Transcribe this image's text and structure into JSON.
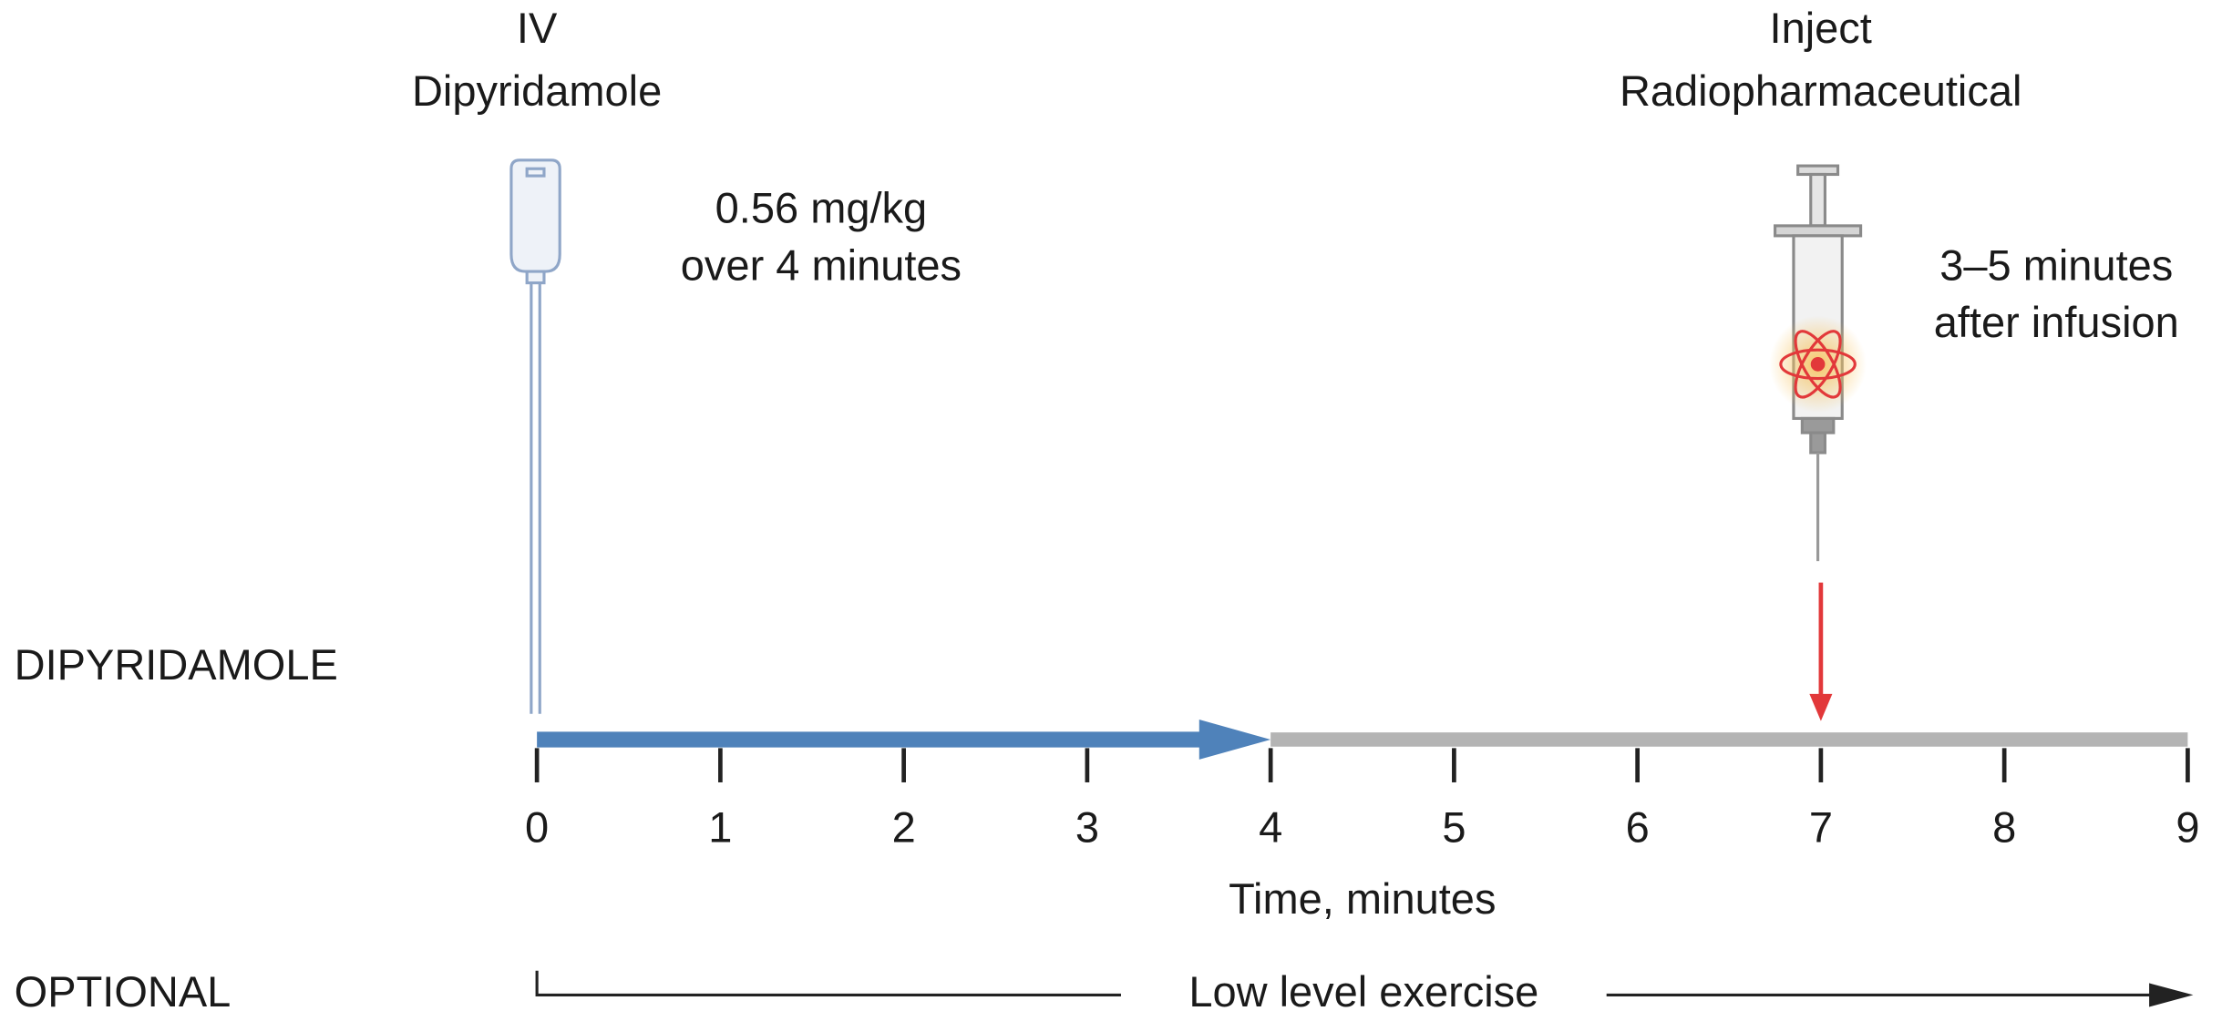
{
  "left_event": {
    "title_lines": [
      "IV",
      "Dipyridamole"
    ],
    "dose_lines": [
      "0.56 mg/kg",
      "over 4 minutes"
    ]
  },
  "right_event": {
    "title_lines": [
      "Inject",
      "Radiopharmaceutical"
    ],
    "timing_lines": [
      "3–5 minutes",
      "after infusion"
    ]
  },
  "rows": {
    "protocol": "DIPYRIDAMOLE",
    "optional": "OPTIONAL"
  },
  "timeline": {
    "xlim": [
      0,
      9
    ],
    "ticks": [
      0,
      1,
      2,
      3,
      4,
      5,
      6,
      7,
      8,
      9
    ],
    "axis_label": "Time, minutes",
    "infusion_end": 4,
    "injection_time": 7
  },
  "exercise_label": "Low level exercise"
}
